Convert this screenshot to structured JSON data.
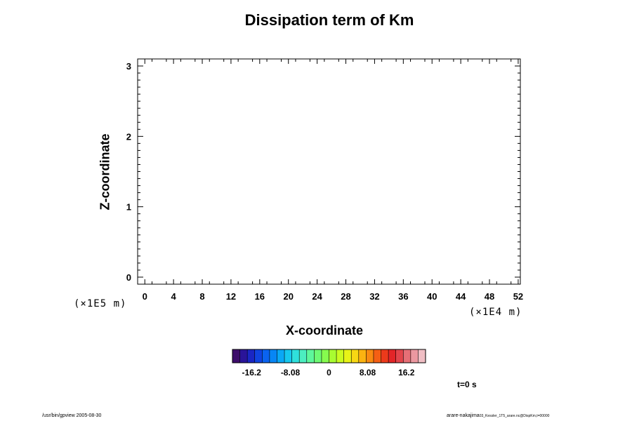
{
  "chart_data": {
    "type": "heatmap",
    "title": "Dissipation term of Km",
    "xlabel": "X-coordinate",
    "ylabel": "Z-coordinate",
    "x_ticks": [
      "0",
      "4",
      "8",
      "12",
      "16",
      "20",
      "24",
      "28",
      "32",
      "36",
      "40",
      "44",
      "48",
      "52"
    ],
    "y_ticks": [
      "0",
      "1",
      "2",
      "3"
    ],
    "xlim": [
      -1,
      52.3
    ],
    "ylim": [
      -0.1,
      3.1
    ],
    "x_unit": "(×1E4 m)",
    "y_unit": "(×1E5 m)",
    "colorbar": {
      "min": -20.2,
      "max": 20.2,
      "tick_labels": [
        "-16.2",
        "-8.08",
        "0",
        "8.08",
        "16.2"
      ],
      "tick_values": [
        -16.2,
        -8.08,
        0,
        8.08,
        16.2
      ],
      "colors": [
        "#3d0d6b",
        "#2a1499",
        "#1a26c4",
        "#1043e0",
        "#0a63f0",
        "#0786f5",
        "#0aa8f5",
        "#16c8ee",
        "#2fe0dc",
        "#4ceec0",
        "#5ef79b",
        "#6efa74",
        "#86fb4e",
        "#a8fc31",
        "#cafb20",
        "#e8f317",
        "#f8d813",
        "#fbb311",
        "#f98a11",
        "#f55f14",
        "#ec3a1b",
        "#e32527",
        "#e2454b",
        "#e66f76",
        "#eb98a0",
        "#f0bec4"
      ]
    },
    "annotation": "t=0 s"
  },
  "footer": {
    "left": "/usr/bin/gpview 2005-08-30",
    "right_main": "arare-nakajima",
    "right_small": "03_Kessler_1T5_arare.nc@DispKm,t=00000"
  }
}
